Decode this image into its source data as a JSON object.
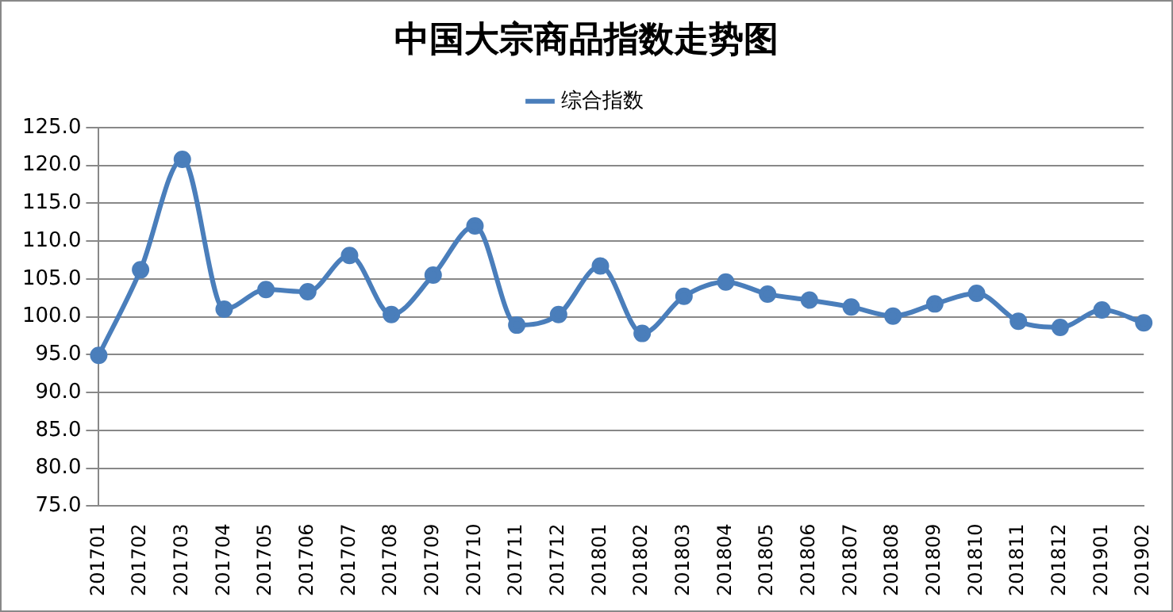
{
  "chart_data": {
    "type": "line",
    "title": "中国大宗商品指数走势图",
    "categories": [
      "201701",
      "201702",
      "201703",
      "201704",
      "201705",
      "201706",
      "201707",
      "201708",
      "201709",
      "201710",
      "201711",
      "201712",
      "201801",
      "201802",
      "201803",
      "201804",
      "201805",
      "201806",
      "201807",
      "201808",
      "201809",
      "201810",
      "201811",
      "201812",
      "201901",
      "201902"
    ],
    "series": [
      {
        "name": "综合指数",
        "color": "#4a7ebb",
        "values": [
          94.9,
          106.2,
          120.8,
          101.0,
          103.6,
          103.3,
          108.1,
          100.3,
          105.5,
          112.0,
          98.9,
          100.3,
          106.7,
          97.8,
          102.7,
          104.6,
          103.0,
          102.2,
          101.3,
          100.1,
          101.7,
          103.1,
          99.4,
          98.6,
          100.9,
          99.2
        ]
      }
    ],
    "ylim": [
      75,
      125
    ],
    "yticks": [
      {
        "value": 75,
        "label": "75.0"
      },
      {
        "value": 80,
        "label": "80.0"
      },
      {
        "value": 85,
        "label": "85.0"
      },
      {
        "value": 90,
        "label": "90.0"
      },
      {
        "value": 95,
        "label": "95.0"
      },
      {
        "value": 100,
        "label": "100.0"
      },
      {
        "value": 105,
        "label": "105.0"
      },
      {
        "value": 110,
        "label": "110.0"
      },
      {
        "value": 115,
        "label": "115.0"
      },
      {
        "value": 120,
        "label": "120.0"
      },
      {
        "value": 125,
        "label": "125.0"
      }
    ],
    "grid": "y",
    "legend": "top",
    "marker": "circle",
    "line_style": "solid"
  }
}
